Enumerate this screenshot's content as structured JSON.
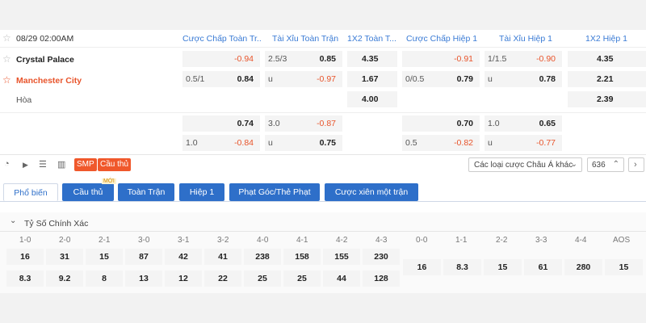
{
  "match": {
    "datetime": "08/29 02:00AM",
    "home": "Crystal Palace",
    "away": "Manchester City",
    "draw": "Hòa"
  },
  "headers": [
    "Cược Chấp Toàn Tr...",
    "Tài Xỉu Toàn Trận",
    "1X2 Toàn T...",
    "Cược Chấp Hiệp 1",
    "Tài Xỉu Hiệp 1",
    "1X2 Hiệp 1"
  ],
  "odds": {
    "r1": {
      "ah_line": "",
      "ah": "-0.94",
      "ou_line": "2.5/3",
      "ou": "0.85",
      "x12": "4.35",
      "h1_ah_line": "",
      "h1_ah": "-0.91",
      "h1_ou_line": "1/1.5",
      "h1_ou": "-0.90",
      "h1_x12": "4.35"
    },
    "r2": {
      "ah_line": "0.5/1",
      "ah": "0.84",
      "ou_line": "u",
      "ou": "-0.97",
      "x12": "1.67",
      "h1_ah_line": "0/0.5",
      "h1_ah": "0.79",
      "h1_ou_line": "u",
      "h1_ou": "0.78",
      "h1_x12": "2.21"
    },
    "r3": {
      "x12": "4.00",
      "h1_x12": "2.39"
    },
    "r4": {
      "ah": "0.74",
      "ou_line": "3.0",
      "ou": "-0.87",
      "h1_ah": "0.70",
      "h1_ou_line": "1.0",
      "h1_ou": "0.65"
    },
    "r5": {
      "ah_line": "1.0",
      "ah": "-0.84",
      "ou_line": "u",
      "ou": "0.75",
      "h1_ah_line": "0.5",
      "h1_ah": "-0.82",
      "h1_ou_line": "u",
      "h1_ou": "-0.77"
    }
  },
  "toolbar": {
    "smp": "SMP",
    "player": "Cầu thủ",
    "market_select": "Các loại cược Châu Á khác",
    "count": "636"
  },
  "tabs": [
    "Phổ biến",
    "Cầu thủ",
    "Toàn Trận",
    "Hiệp 1",
    "Phạt Góc/Thẻ Phạt",
    "Cược xiên một trận"
  ],
  "new_badge": "MỚI",
  "correct_score": {
    "title": "Tỷ Số Chính Xác",
    "left_headers": [
      "1-0",
      "2-0",
      "2-1",
      "3-0",
      "3-1",
      "3-2",
      "4-0",
      "4-1",
      "4-2",
      "4-3"
    ],
    "left_row1": [
      "16",
      "31",
      "15",
      "87",
      "42",
      "41",
      "238",
      "158",
      "155",
      "230"
    ],
    "left_row2": [
      "8.3",
      "9.2",
      "8",
      "13",
      "12",
      "22",
      "25",
      "25",
      "44",
      "128"
    ],
    "right_headers": [
      "0-0",
      "1-1",
      "2-2",
      "3-3",
      "4-4",
      "AOS"
    ],
    "right_row": [
      "16",
      "8.3",
      "15",
      "61",
      "280",
      "15"
    ]
  },
  "colors": {
    "accent": "#2e6fc9",
    "negative": "#e8542b",
    "tag": "#f0582b"
  }
}
